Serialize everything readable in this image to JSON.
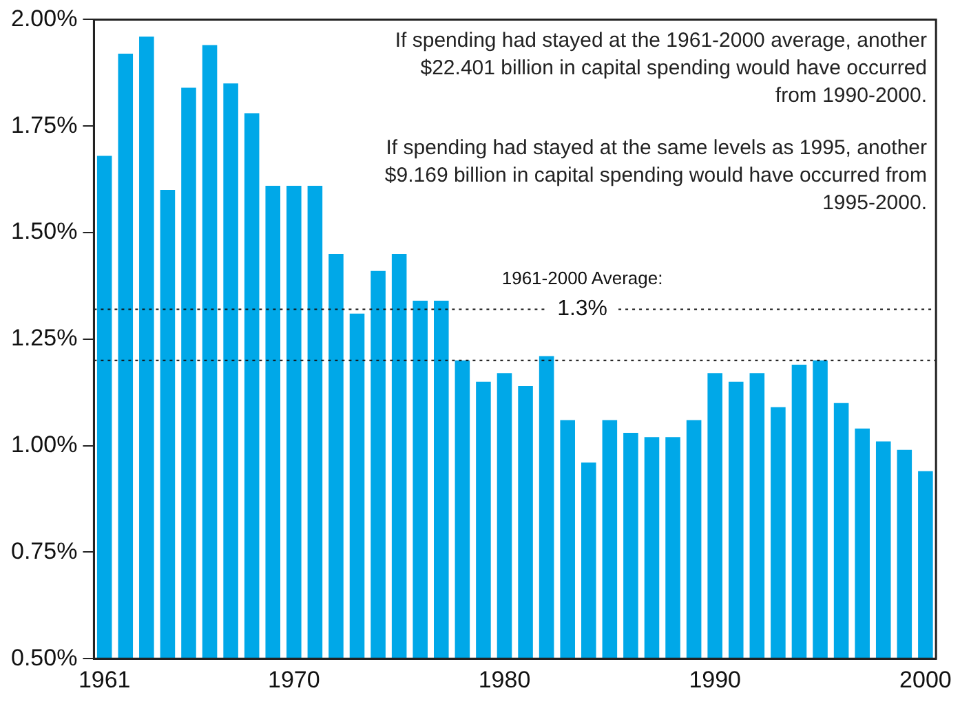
{
  "chart_data": {
    "type": "bar",
    "categories": [
      "1961",
      null,
      null,
      null,
      null,
      null,
      null,
      null,
      null,
      "1970",
      null,
      null,
      null,
      null,
      null,
      null,
      null,
      null,
      null,
      "1980",
      null,
      null,
      null,
      null,
      null,
      null,
      null,
      null,
      null,
      "1990",
      null,
      null,
      null,
      null,
      null,
      null,
      null,
      null,
      null,
      "2000"
    ],
    "values": [
      1.68,
      1.92,
      1.96,
      1.6,
      1.84,
      1.94,
      1.85,
      1.78,
      1.61,
      1.61,
      1.61,
      1.45,
      1.31,
      1.41,
      1.45,
      1.34,
      1.34,
      1.2,
      1.15,
      1.17,
      1.14,
      1.21,
      1.06,
      0.96,
      1.06,
      1.03,
      1.02,
      1.02,
      1.06,
      1.17,
      1.15,
      1.17,
      1.09,
      1.19,
      1.2,
      1.1,
      1.04,
      1.01,
      0.99,
      0.94
    ],
    "color": "#00a8e8",
    "ylim": [
      0.5,
      2.0
    ],
    "yticks": [
      {
        "value": 0.5,
        "label": "0.50%"
      },
      {
        "value": 0.75,
        "label": "0.75%"
      },
      {
        "value": 1.0,
        "label": "1.00%"
      },
      {
        "value": 1.25,
        "label": "1.25%"
      },
      {
        "value": 1.5,
        "label": "1.50%"
      },
      {
        "value": 1.75,
        "label": "1.75%"
      },
      {
        "value": 2.0,
        "label": "2.00%"
      }
    ],
    "grid": false,
    "ref_lines": [
      {
        "axis": "y",
        "value": 1.32,
        "label": "1961-2000 Average:\n1.3%",
        "line_style": "dotted"
      },
      {
        "axis": "y",
        "value": 1.2,
        "line_style": "dotted"
      }
    ],
    "annotations": [
      "If spending had stayed at the 1961-2000 average, another $22.401 billion in capital spending would have occurred from 1990-2000.",
      "If spending had stayed at the same levels as 1995, another $9.169 billion in capital spending would have occurred from 1995-2000."
    ]
  }
}
